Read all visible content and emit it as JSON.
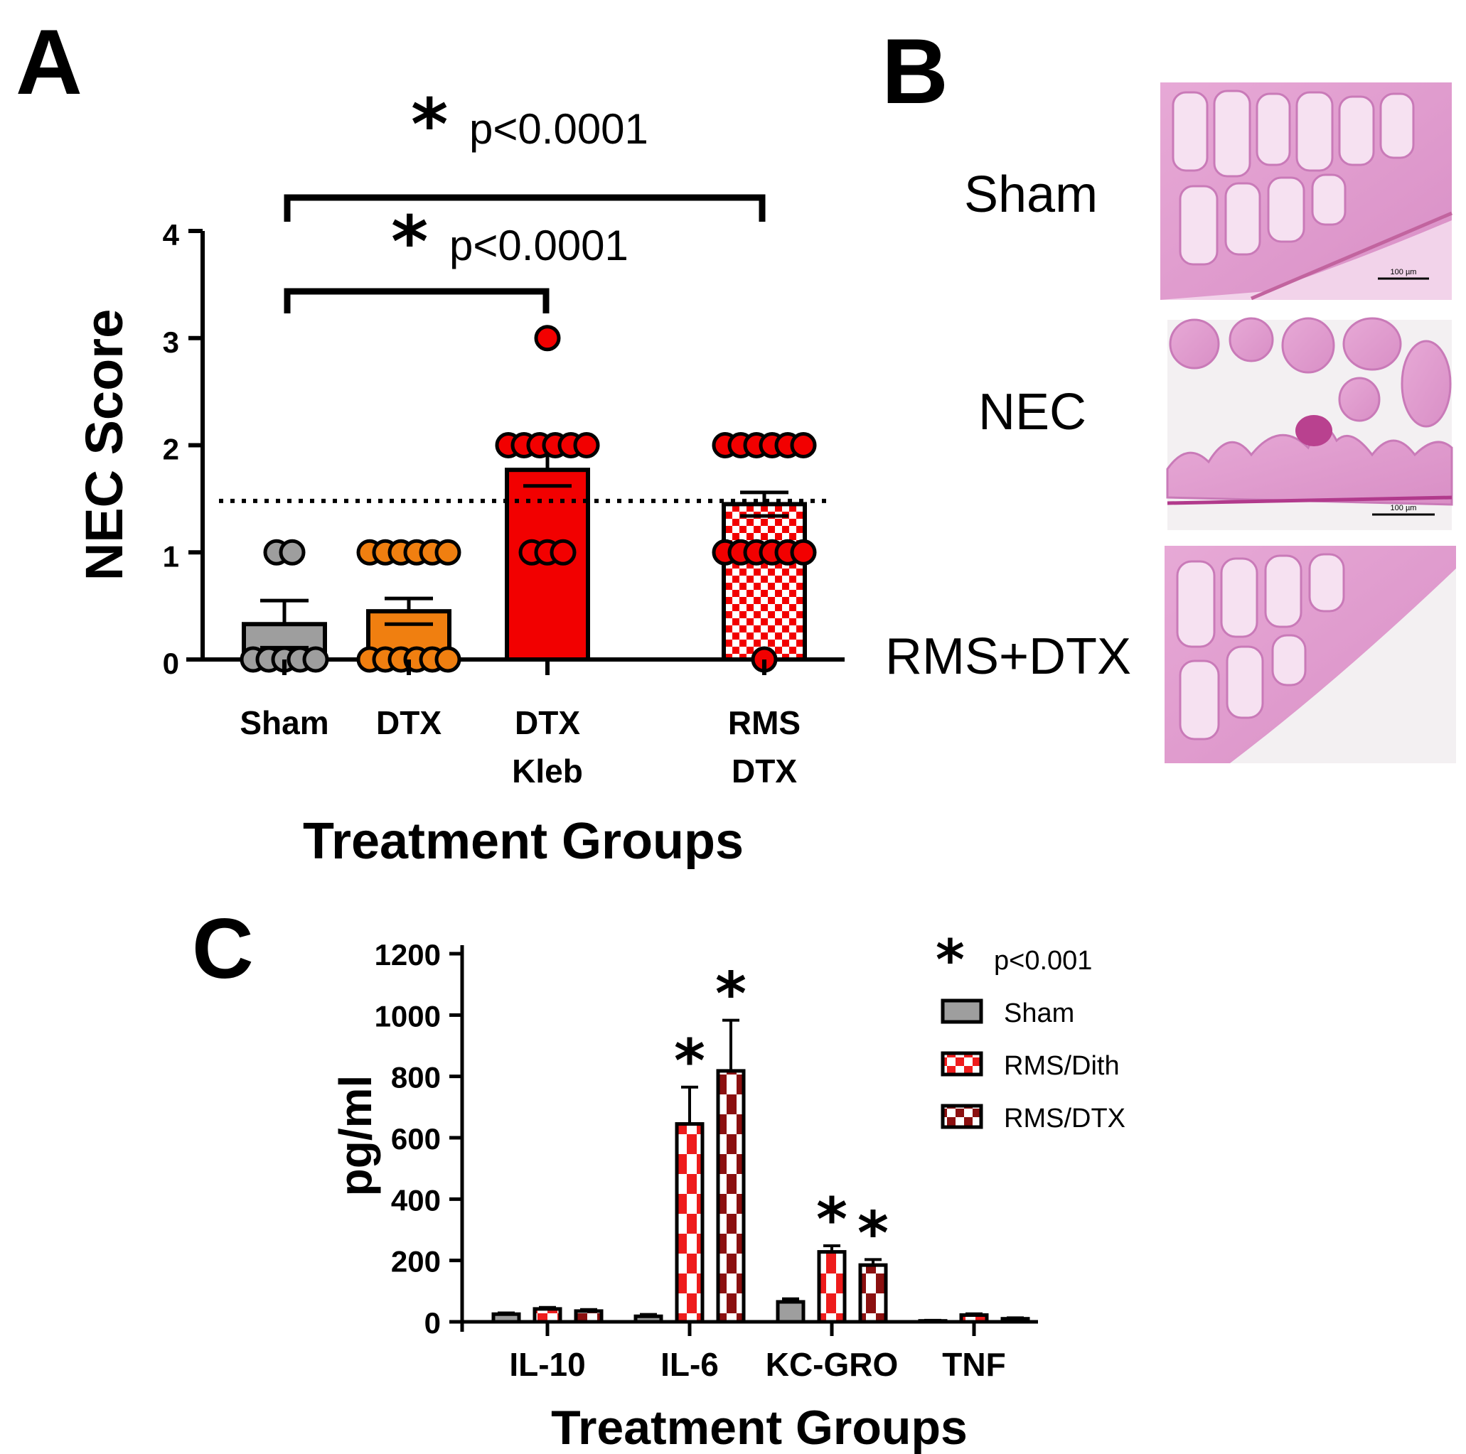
{
  "panelA": {
    "letter": "A",
    "chart_data": {
      "type": "bar",
      "categories": [
        "Sham",
        "DTX",
        "DTX Kleb",
        "RMS DTX"
      ],
      "category_lines": [
        [
          "Sham"
        ],
        [
          "DTX"
        ],
        [
          "DTX",
          "Kleb"
        ],
        [
          "RMS",
          "DTX"
        ]
      ],
      "series": [
        {
          "values": [
            0.33,
            0.45,
            1.77,
            1.45
          ],
          "error": [
            0.22,
            0.12,
            0.15,
            0.11
          ]
        }
      ],
      "points": [
        [
          1,
          1,
          0,
          0,
          0,
          0,
          0
        ],
        [
          1,
          1,
          1,
          1,
          1,
          1,
          0,
          0,
          0,
          0,
          0,
          0
        ],
        [
          3,
          2,
          2,
          2,
          2,
          2,
          2,
          1,
          1,
          1
        ],
        [
          2,
          2,
          2,
          2,
          2,
          2,
          1,
          1,
          1,
          1,
          1,
          1,
          0
        ]
      ],
      "colors": [
        "#9e9e9e",
        "#f07f10",
        "#f20000",
        "#f20000"
      ],
      "patterns": [
        "solid",
        "solid",
        "solid",
        "checker"
      ],
      "threshold": 1.48,
      "ylim": [
        0,
        4
      ],
      "yticks": [
        "0",
        "1",
        "2",
        "3",
        "4"
      ],
      "ylabel": "NEC Score",
      "xlabel": "Treatment Groups",
      "significance": [
        {
          "from": "Sham",
          "to": "DTX Kleb",
          "star": "*",
          "label": "p<0.0001"
        },
        {
          "from": "Sham",
          "to": "RMS DTX",
          "star": "*",
          "label": "p<0.0001"
        }
      ]
    }
  },
  "panelB": {
    "letter": "B",
    "labels": [
      "Sham",
      "NEC",
      "RMS+DTX"
    ],
    "scale_bar": "100 µm"
  },
  "panelC": {
    "letter": "C",
    "chart_data": {
      "type": "bar",
      "categories": [
        "IL-10",
        "IL-6",
        "KC-GRO",
        "TNF"
      ],
      "series": [
        {
          "name": "Sham",
          "values": [
            25,
            18,
            65,
            3
          ],
          "error": [
            4,
            6,
            10,
            2
          ],
          "color": "#9e9e9e",
          "pattern": "solid"
        },
        {
          "name": "RMS/Dith",
          "values": [
            42,
            645,
            228,
            22
          ],
          "error": [
            5,
            120,
            20,
            4
          ],
          "color": "#ee1c1c",
          "pattern": "checker"
        },
        {
          "name": "RMS/DTX",
          "values": [
            35,
            818,
            185,
            10
          ],
          "error": [
            5,
            165,
            18,
            3
          ],
          "color": "#8b1010",
          "pattern": "checker"
        }
      ],
      "stars": [
        {
          "category": "IL-6",
          "series": "RMS/Dith"
        },
        {
          "category": "IL-6",
          "series": "RMS/DTX"
        },
        {
          "category": "KC-GRO",
          "series": "RMS/Dith"
        },
        {
          "category": "KC-GRO",
          "series": "RMS/DTX"
        }
      ],
      "ylim": [
        0,
        1200
      ],
      "yticks": [
        "0",
        "200",
        "400",
        "600",
        "800",
        "1000",
        "1200"
      ],
      "ylabel": "pg/ml",
      "xlabel": "Treatment Groups",
      "legend": {
        "star": "*",
        "star_label": "p<0.001",
        "placement": "top-right"
      }
    }
  }
}
